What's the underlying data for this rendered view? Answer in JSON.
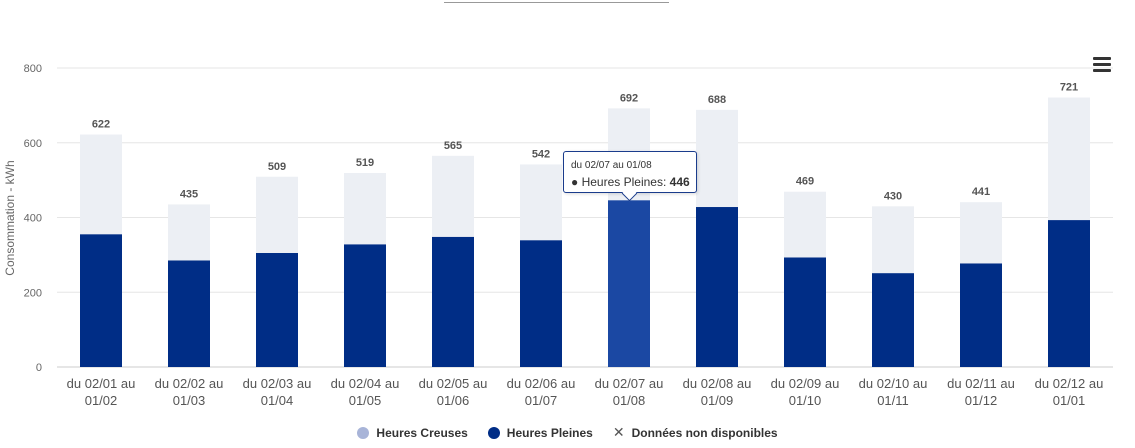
{
  "chart_data": {
    "type": "bar",
    "stacked": true,
    "y_title": "Consommation - kWh",
    "ylim": [
      0,
      800
    ],
    "yticks": [
      0,
      200,
      400,
      600,
      800
    ],
    "grid": true,
    "categories": [
      [
        "du 02/01 au",
        "01/02"
      ],
      [
        "du 02/02 au",
        "01/03"
      ],
      [
        "du 02/03 au",
        "01/04"
      ],
      [
        "du 02/04 au",
        "01/05"
      ],
      [
        "du 02/05 au",
        "01/06"
      ],
      [
        "du 02/06 au",
        "01/07"
      ],
      [
        "du 02/07 au",
        "01/08"
      ],
      [
        "du 02/08 au",
        "01/09"
      ],
      [
        "du 02/09 au",
        "01/10"
      ],
      [
        "du 02/10 au",
        "01/11"
      ],
      [
        "du 02/11 au",
        "01/12"
      ],
      [
        "du 02/12 au",
        "01/01"
      ]
    ],
    "totals": [
      622,
      435,
      509,
      519,
      565,
      542,
      692,
      688,
      469,
      430,
      441,
      721
    ],
    "series": [
      {
        "name": "Heures Pleines",
        "color": "#002d86",
        "values": [
          355,
          285,
          305,
          328,
          348,
          339,
          446,
          428,
          293,
          251,
          277,
          393
        ]
      },
      {
        "name": "Heures Creuses",
        "color": "#eceff4",
        "values": [
          267,
          150,
          204,
          191,
          217,
          203,
          246,
          260,
          176,
          179,
          164,
          328
        ]
      }
    ],
    "highlight_index": 6,
    "highlight_color": "#1b48a3"
  },
  "legend": {
    "creuses": {
      "label": "Heures Creuses",
      "color": "#a8b4d8"
    },
    "pleines": {
      "label": "Heures Pleines",
      "color": "#002d86"
    },
    "unavailable": {
      "label": "Données non disponibles",
      "icon": "x-icon"
    }
  },
  "tooltip": {
    "title": "du 02/07 au 01/08",
    "series_name": "Heures Pleines",
    "value": "446"
  },
  "menu": {
    "icon": "hamburger-menu-icon"
  }
}
